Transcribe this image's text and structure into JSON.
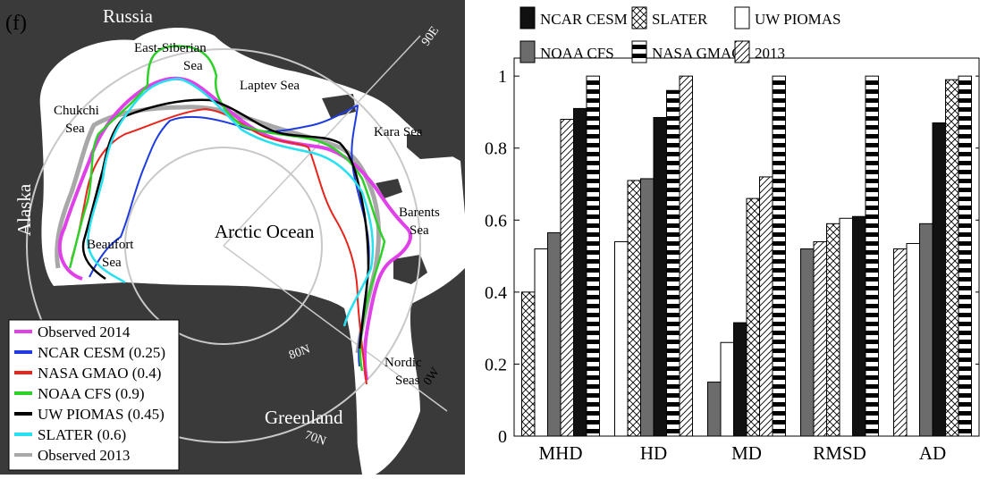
{
  "colors": {
    "land": "#3a3a3a",
    "ocean": "#ffffff",
    "frame": "#c8c8c8",
    "observed_2014": "#e040e8",
    "ncar_cesm": "#1e3be0",
    "nasa_gmao": "#e8251c",
    "noaa_cfs": "#2ed12a",
    "uw_piomas": "#000000",
    "slater": "#27e0f0",
    "observed_2013": "#a8a8a8"
  },
  "map": {
    "panel_label": "(f)",
    "place_labels": {
      "russia": "Russia",
      "east_siberian": "East-Siberian",
      "east_siberian_2": "Sea",
      "laptev": "Laptev Sea",
      "chukchi": "Chukchi",
      "chukchi_2": "Sea",
      "kara": "Kara Sea",
      "alaska": "Alaska",
      "barents": "Barents",
      "barents_2": "Sea",
      "arctic": "Arctic Ocean",
      "beaufort": "Beaufort",
      "beaufort_2": "Sea",
      "nordic": "Nordic",
      "nordic_2": "Seas",
      "greenland": "Greenland"
    },
    "grid_labels": {
      "lon_90e": "90E",
      "lon_0w": "0W",
      "lat_80n": "80N",
      "lat_70n": "70N"
    },
    "legend": [
      {
        "label": "Observed 2014",
        "color_key": "observed_2014"
      },
      {
        "label": "NCAR CESM (0.25)",
        "color_key": "ncar_cesm"
      },
      {
        "label": "NASA GMAO (0.4)",
        "color_key": "nasa_gmao"
      },
      {
        "label": "NOAA CFS (0.9)",
        "color_key": "noaa_cfs"
      },
      {
        "label": "UW PIOMAS (0.45)",
        "color_key": "uw_piomas"
      },
      {
        "label": "SLATER (0.6)",
        "color_key": "slater"
      },
      {
        "label": "Observed 2013",
        "color_key": "observed_2013"
      }
    ]
  },
  "chart_data": {
    "type": "bar",
    "categories": [
      "MHD",
      "HD",
      "MD",
      "RMSD",
      "AD"
    ],
    "ylim": [
      0,
      1.05
    ],
    "yticks": [
      0,
      0.2,
      0.4,
      0.6,
      0.8,
      1
    ],
    "ytick_labels": [
      "0",
      "0.2",
      "0.4",
      "0.6",
      "0.8",
      "1"
    ],
    "legend": [
      {
        "name": "NCAR CESM",
        "pattern": "solid-black"
      },
      {
        "name": "NOAA CFS",
        "pattern": "solid-gray"
      },
      {
        "name": "SLATER",
        "pattern": "crosshatch"
      },
      {
        "name": "NASA GMAO",
        "pattern": "horizontal-stripes"
      },
      {
        "name": "UW PIOMAS",
        "pattern": "white"
      },
      {
        "name": "2013",
        "pattern": "diagonal"
      }
    ],
    "groups": [
      {
        "category": "MHD",
        "bars": [
          {
            "series": "SLATER",
            "pattern": "crosshatch",
            "value": 0.4
          },
          {
            "series": "UW PIOMAS",
            "pattern": "white",
            "value": 0.52
          },
          {
            "series": "NOAA CFS",
            "pattern": "solid-gray",
            "value": 0.565
          },
          {
            "series": "2013",
            "pattern": "diagonal",
            "value": 0.88
          },
          {
            "series": "NCAR CESM",
            "pattern": "solid-black",
            "value": 0.91
          },
          {
            "series": "NASA GMAO",
            "pattern": "horizontal-stripes",
            "value": 1.0
          }
        ]
      },
      {
        "category": "HD",
        "bars": [
          {
            "series": "UW PIOMAS",
            "pattern": "white",
            "value": 0.54
          },
          {
            "series": "SLATER",
            "pattern": "crosshatch",
            "value": 0.71
          },
          {
            "series": "NOAA CFS",
            "pattern": "solid-gray",
            "value": 0.715
          },
          {
            "series": "NCAR CESM",
            "pattern": "solid-black",
            "value": 0.885
          },
          {
            "series": "NASA GMAO",
            "pattern": "horizontal-stripes",
            "value": 0.96
          },
          {
            "series": "2013",
            "pattern": "diagonal",
            "value": 1.0
          }
        ]
      },
      {
        "category": "MD",
        "bars": [
          {
            "series": "NOAA CFS",
            "pattern": "solid-gray",
            "value": 0.15
          },
          {
            "series": "UW PIOMAS",
            "pattern": "white",
            "value": 0.26
          },
          {
            "series": "NCAR CESM",
            "pattern": "solid-black",
            "value": 0.315
          },
          {
            "series": "SLATER",
            "pattern": "crosshatch",
            "value": 0.66
          },
          {
            "series": "2013",
            "pattern": "diagonal",
            "value": 0.72
          },
          {
            "series": "NASA GMAO",
            "pattern": "horizontal-stripes",
            "value": 1.0
          }
        ]
      },
      {
        "category": "RMSD",
        "bars": [
          {
            "series": "NOAA CFS",
            "pattern": "solid-gray",
            "value": 0.52
          },
          {
            "series": "2013",
            "pattern": "diagonal",
            "value": 0.54
          },
          {
            "series": "SLATER",
            "pattern": "crosshatch",
            "value": 0.59
          },
          {
            "series": "UW PIOMAS",
            "pattern": "white",
            "value": 0.605
          },
          {
            "series": "NCAR CESM",
            "pattern": "solid-black",
            "value": 0.61
          },
          {
            "series": "NASA GMAO",
            "pattern": "horizontal-stripes",
            "value": 1.0
          }
        ]
      },
      {
        "category": "AD",
        "bars": [
          {
            "series": "2013",
            "pattern": "diagonal",
            "value": 0.52
          },
          {
            "series": "UW PIOMAS",
            "pattern": "white",
            "value": 0.535
          },
          {
            "series": "NOAA CFS",
            "pattern": "solid-gray",
            "value": 0.59
          },
          {
            "series": "NCAR CESM",
            "pattern": "solid-black",
            "value": 0.87
          },
          {
            "series": "SLATER",
            "pattern": "crosshatch",
            "value": 0.99
          },
          {
            "series": "NASA GMAO",
            "pattern": "horizontal-stripes",
            "value": 1.0
          }
        ]
      }
    ]
  }
}
